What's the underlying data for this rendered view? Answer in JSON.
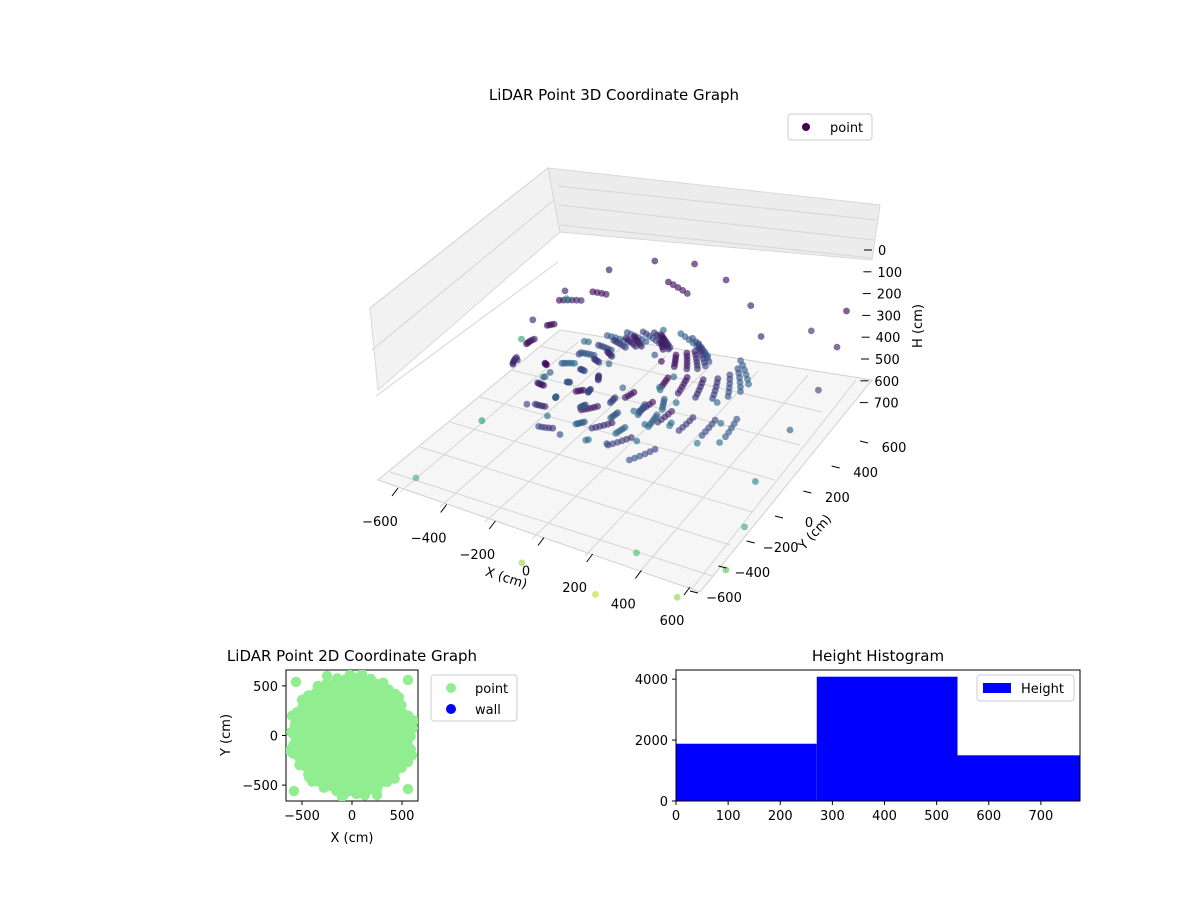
{
  "chart_data": [
    {
      "type": "scatter",
      "projection": "3d",
      "title": "LiDAR Point 3D Coordinate Graph",
      "xlabel": "X (cm)",
      "ylabel": "Y (cm)",
      "zlabel": "H (cm)",
      "xticks": [
        "−600",
        "−400",
        "−200",
        "0",
        "200",
        "400",
        "600"
      ],
      "yticks": [
        "−600",
        "−400",
        "−200",
        "0",
        "200",
        "400",
        "600"
      ],
      "zticks": [
        "0",
        "100",
        "200",
        "300",
        "400",
        "500",
        "600",
        "700"
      ],
      "xlim": [
        -650,
        650
      ],
      "ylim": [
        -650,
        650
      ],
      "zlim": [
        0,
        770
      ],
      "z_axis_inverted": true,
      "colormap": "viridis",
      "color_by": "H (cm)",
      "legend": {
        "placement": "top-right",
        "entries": [
          {
            "label": "point",
            "color": "#440154"
          }
        ]
      },
      "series": [
        {
          "name": "point",
          "description_of_distribution": "dense dome of points near H 0-300 at the center, sparse outer points at higher H",
          "points": [
            [
              -330,
              420,
              60
            ],
            [
              -200,
              520,
              40
            ],
            [
              -60,
              560,
              30
            ],
            [
              80,
              540,
              40
            ],
            [
              220,
              470,
              60
            ],
            [
              330,
              350,
              80
            ],
            [
              -420,
              260,
              80
            ],
            [
              -450,
              80,
              100
            ],
            [
              -400,
              -120,
              130
            ],
            [
              -260,
              -300,
              160
            ],
            [
              -80,
              -380,
              180
            ],
            [
              100,
              -360,
              170
            ],
            [
              -150,
              100,
              220
            ],
            [
              -60,
              40,
              260
            ],
            [
              30,
              -40,
              280
            ],
            [
              120,
              -120,
              250
            ],
            [
              -20,
              200,
              200
            ],
            [
              80,
              160,
              240
            ],
            [
              280,
              120,
              260
            ],
            [
              340,
              40,
              280
            ],
            [
              380,
              -40,
              300
            ],
            [
              300,
              -60,
              320
            ],
            [
              -300,
              -60,
              200
            ],
            [
              -250,
              60,
              180
            ],
            [
              560,
              560,
              20
            ],
            [
              600,
              420,
              80
            ],
            [
              620,
              250,
              160
            ],
            [
              600,
              80,
              240
            ],
            [
              560,
              -100,
              380
            ],
            [
              600,
              -250,
              480
            ],
            [
              620,
              -420,
              560
            ],
            [
              500,
              -560,
              640
            ],
            [
              -600,
              -500,
              520
            ],
            [
              -620,
              300,
              440
            ],
            [
              -560,
              520,
              380
            ],
            [
              200,
              -620,
              700
            ],
            [
              -100,
              -620,
              660
            ],
            [
              450,
              500,
              120
            ],
            [
              -500,
              -200,
              420
            ],
            [
              300,
              -500,
              540
            ]
          ]
        }
      ]
    },
    {
      "type": "scatter",
      "title": "LiDAR Point 2D Coordinate Graph",
      "xlabel": "X (cm)",
      "ylabel": "Y (cm)",
      "xticks": [
        "−500",
        "0",
        "500"
      ],
      "yticks": [
        "−500",
        "0",
        "500"
      ],
      "xlim": [
        -660,
        660
      ],
      "ylim": [
        -660,
        660
      ],
      "legend": {
        "placement": "outside-right",
        "entries": [
          {
            "label": "point",
            "color": "#90ee90"
          },
          {
            "label": "wall",
            "color": "#0000ff"
          }
        ]
      },
      "series": [
        {
          "name": "point",
          "color": "#90ee90",
          "shape": "roughly circular cloud radius ~600 cm",
          "points": [
            [
              0,
              0
            ],
            [
              -200,
              300
            ],
            [
              250,
              250
            ],
            [
              -350,
              -300
            ],
            [
              300,
              -350
            ],
            [
              0,
              500
            ],
            [
              0,
              -500
            ],
            [
              500,
              0
            ],
            [
              -500,
              0
            ],
            [
              -560,
              540
            ],
            [
              560,
              560
            ],
            [
              -580,
              -560
            ],
            [
              560,
              -540
            ],
            [
              -600,
              200
            ],
            [
              600,
              -200
            ],
            [
              -250,
              600
            ],
            [
              250,
              -600
            ],
            [
              430,
              420
            ],
            [
              -430,
              -420
            ],
            [
              -440,
              400
            ],
            [
              420,
              -430
            ],
            [
              620,
              150
            ],
            [
              -620,
              -150
            ],
            [
              100,
              620
            ],
            [
              -100,
              -620
            ]
          ]
        },
        {
          "name": "wall",
          "color": "#0000ff",
          "points": []
        }
      ]
    },
    {
      "type": "bar",
      "subtype": "histogram",
      "title": "Height Histogram",
      "xticks": [
        "0",
        "100",
        "200",
        "300",
        "400",
        "500",
        "600",
        "700"
      ],
      "yticks": [
        "0",
        "2000",
        "4000"
      ],
      "xlim": [
        0,
        775
      ],
      "ylim": [
        0,
        4300
      ],
      "bin_edges": [
        0,
        270,
        540,
        775
      ],
      "values": [
        1880,
        4080,
        1500
      ],
      "color": "#0000ff",
      "legend": {
        "placement": "top-right",
        "entries": [
          {
            "label": "Height",
            "color": "#0000ff"
          }
        ]
      }
    }
  ]
}
